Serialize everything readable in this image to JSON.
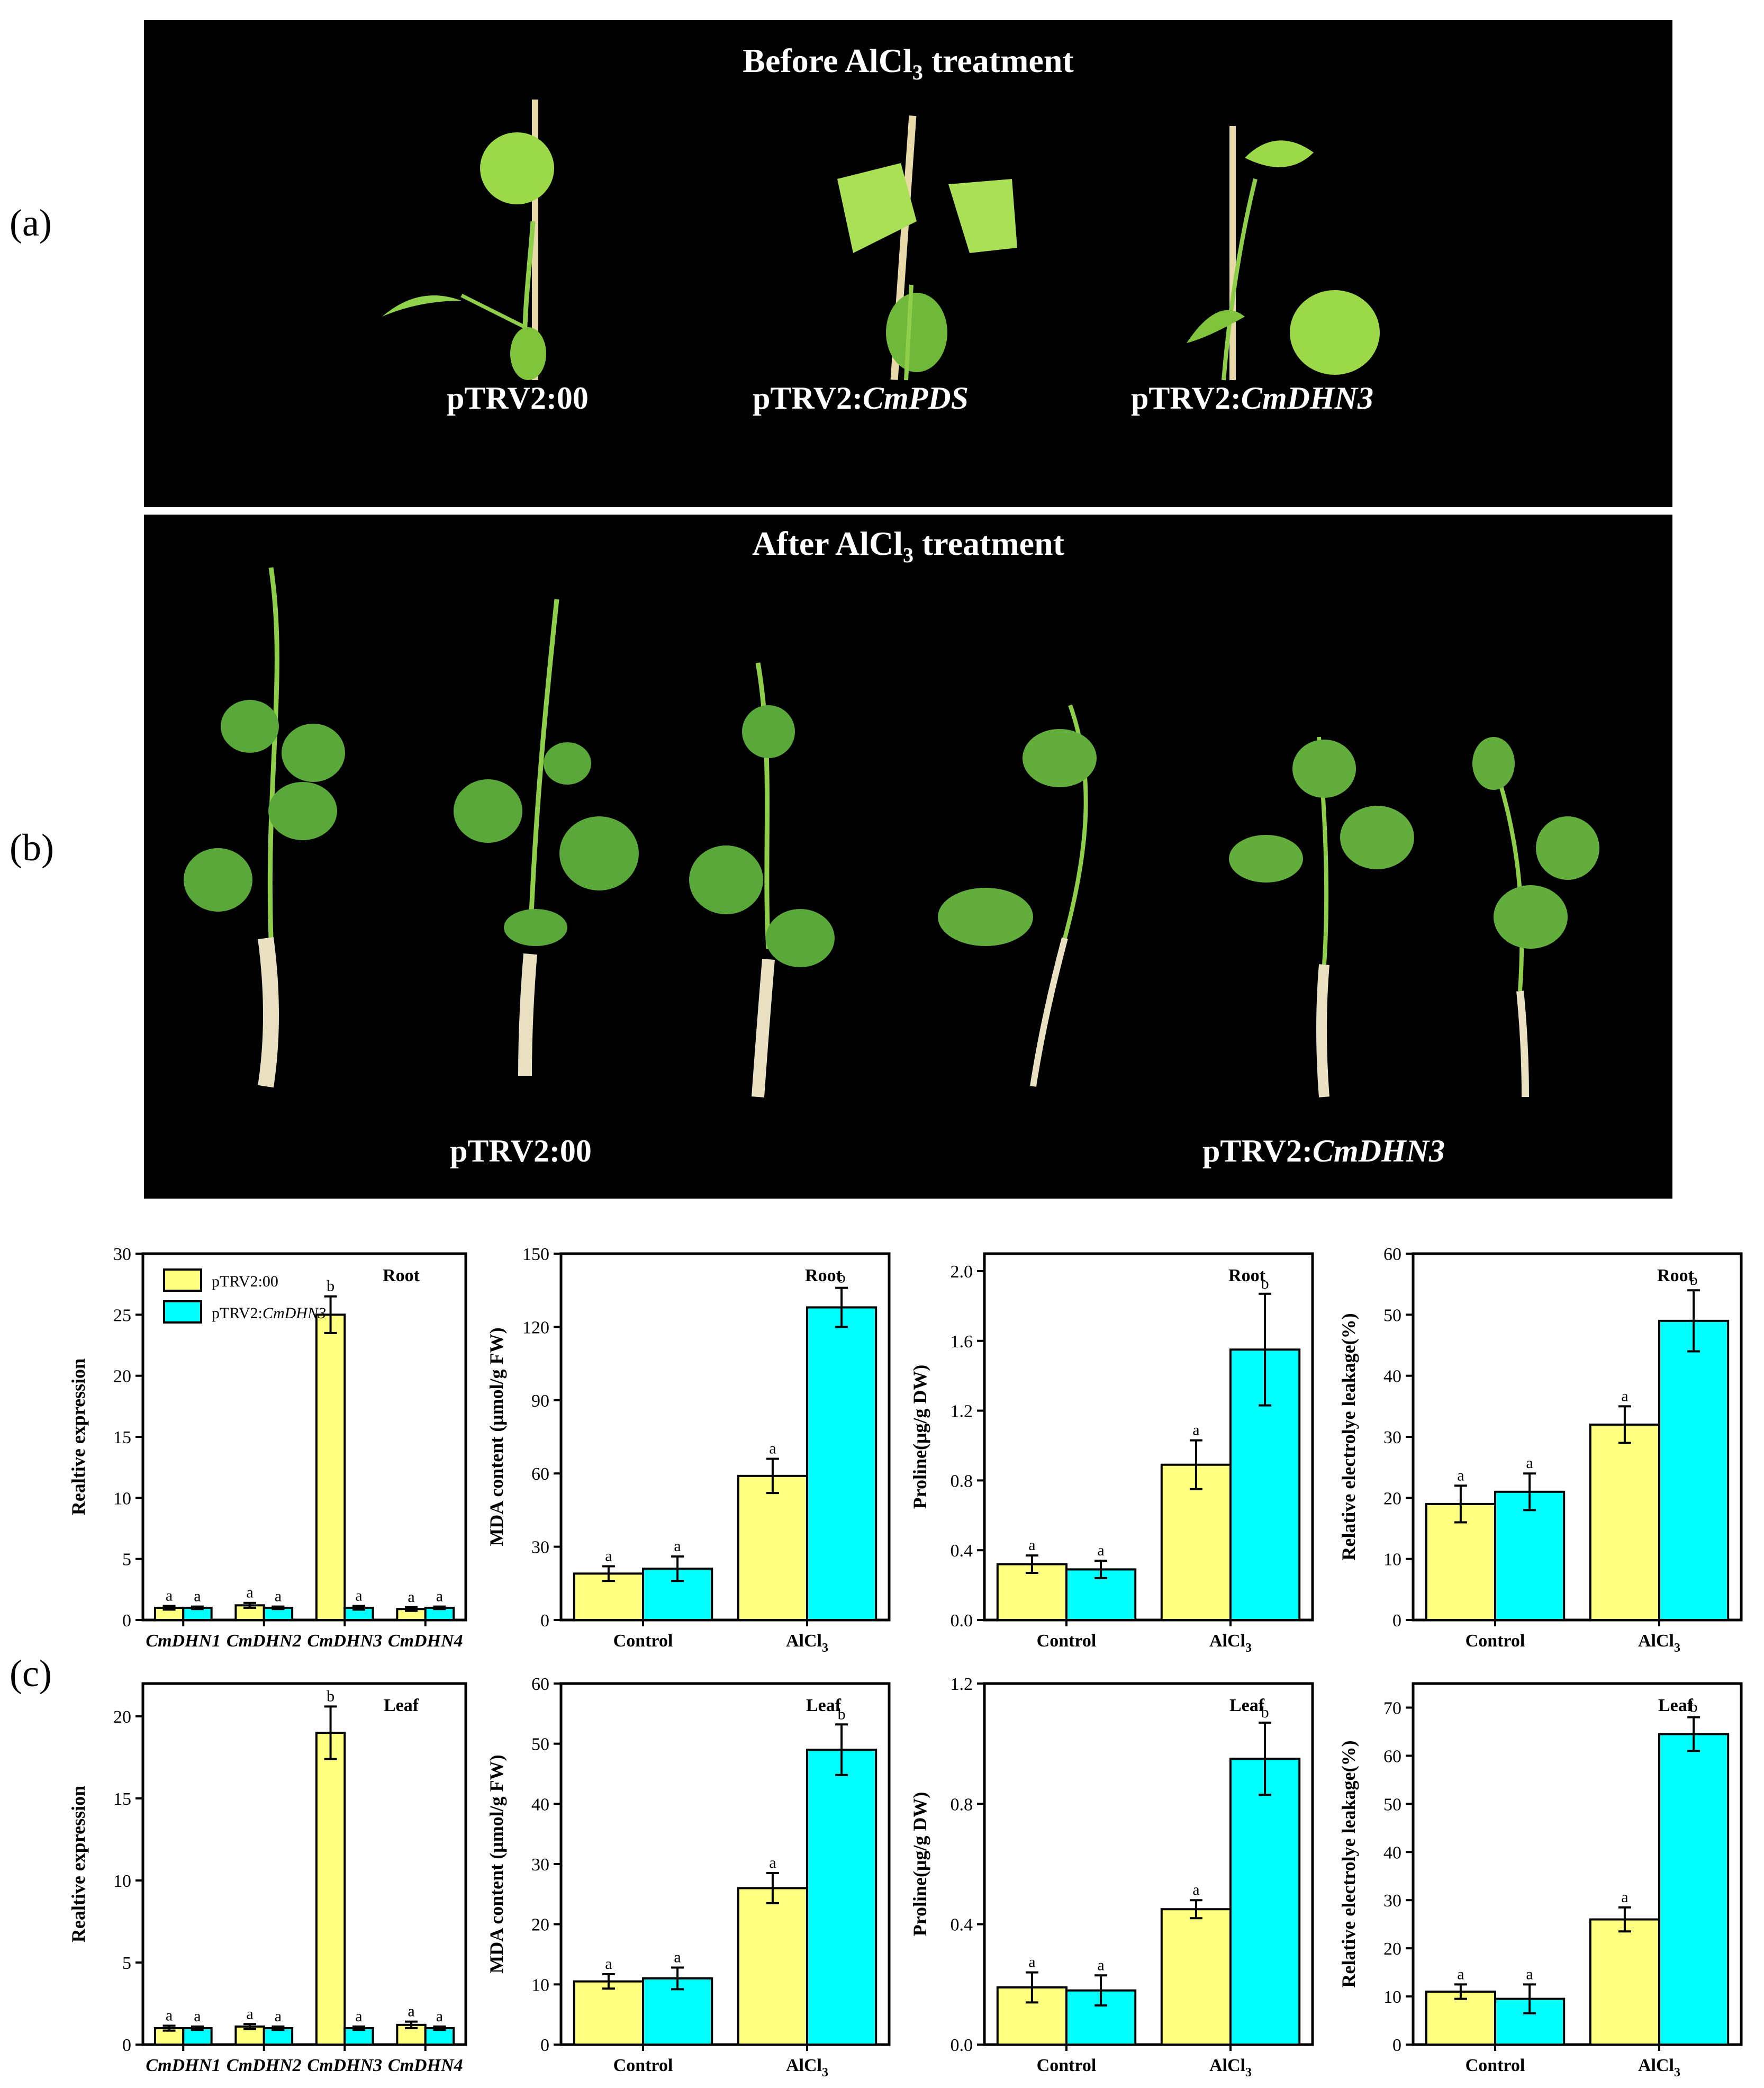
{
  "panels": {
    "a": "(a)",
    "b": "(b)",
    "c": "(c)"
  },
  "photo_a": {
    "title": "Before AlCl",
    "title_sub": "3",
    "title_rest": " treatment",
    "labels": [
      {
        "prefix": "pTRV2:00",
        "gene": ""
      },
      {
        "prefix": "pTRV2:",
        "gene": "CmPDS"
      },
      {
        "prefix": "pTRV2:",
        "gene": "CmDHN3"
      }
    ]
  },
  "photo_b": {
    "title": "After AlCl",
    "title_sub": "3",
    "title_rest": " treatment",
    "labels": [
      {
        "prefix": "pTRV2:00",
        "gene": ""
      },
      {
        "prefix": "pTRV2:",
        "gene": "CmDHN3"
      }
    ]
  },
  "colors": {
    "pTRV2_00": "#ffff80",
    "pTRV2_CmDHN3": "#00ffff",
    "photo_bg": "#000000",
    "leaf": "#7ec850"
  },
  "legend": [
    {
      "prefix": "pTRV2:00",
      "gene": ""
    },
    {
      "prefix": "pTRV2:",
      "gene": "CmDHN3"
    }
  ],
  "chart_data": [
    {
      "type": "bar",
      "title": "Root",
      "ylabel": "Realtive expression",
      "categories": [
        "CmDHN1",
        "CmDHN2",
        "CmDHN3",
        "CmDHN4"
      ],
      "categories_italic": true,
      "ylim": [
        0,
        30
      ],
      "yticks": [
        0,
        5,
        10,
        15,
        20,
        25,
        30
      ],
      "series": [
        {
          "name": "pTRV2:00",
          "values": [
            1.0,
            1.2,
            25.0,
            0.9
          ],
          "errors": [
            0.15,
            0.2,
            1.5,
            0.15
          ],
          "letters": [
            "a",
            "a",
            "b",
            "a"
          ]
        },
        {
          "name": "pTRV2:CmDHN3",
          "values": [
            1.0,
            1.0,
            1.0,
            1.0
          ],
          "errors": [
            0.1,
            0.1,
            0.15,
            0.1
          ],
          "letters": [
            "a",
            "a",
            "a",
            "a"
          ]
        }
      ]
    },
    {
      "type": "bar",
      "title": "Root",
      "ylabel": "MDA content (μmol/g FW)",
      "categories": [
        "Control",
        "AlCl3"
      ],
      "ylim": [
        0,
        150
      ],
      "yticks": [
        0,
        30,
        60,
        90,
        120,
        150
      ],
      "series": [
        {
          "name": "pTRV2:00",
          "values": [
            19,
            59
          ],
          "errors": [
            3,
            7
          ],
          "letters": [
            "a",
            "a"
          ]
        },
        {
          "name": "pTRV2:CmDHN3",
          "values": [
            21,
            128
          ],
          "errors": [
            5,
            8
          ],
          "letters": [
            "a",
            "b"
          ]
        }
      ]
    },
    {
      "type": "bar",
      "title": "Root",
      "ylabel": "Proline(μg/g DW)",
      "categories": [
        "Control",
        "AlCl3"
      ],
      "ylim": [
        0,
        2.1
      ],
      "yticks": [
        "0.0",
        "0.4",
        "0.8",
        "1.2",
        "1.6",
        "2.0"
      ],
      "series": [
        {
          "name": "pTRV2:00",
          "values": [
            0.32,
            0.89
          ],
          "errors": [
            0.05,
            0.14
          ],
          "letters": [
            "a",
            "a"
          ]
        },
        {
          "name": "pTRV2:CmDHN3",
          "values": [
            0.29,
            1.55
          ],
          "errors": [
            0.05,
            0.32
          ],
          "letters": [
            "a",
            "b"
          ]
        }
      ]
    },
    {
      "type": "bar",
      "title": "Root",
      "ylabel": "Relative electrolye leakage(%)",
      "categories": [
        "Control",
        "AlCl3"
      ],
      "ylim": [
        0,
        60
      ],
      "yticks": [
        0,
        10,
        20,
        30,
        40,
        50,
        60
      ],
      "series": [
        {
          "name": "pTRV2:00",
          "values": [
            19,
            32
          ],
          "errors": [
            3,
            3
          ],
          "letters": [
            "a",
            "a"
          ]
        },
        {
          "name": "pTRV2:CmDHN3",
          "values": [
            21,
            49
          ],
          "errors": [
            3,
            5
          ],
          "letters": [
            "a",
            "b"
          ]
        }
      ]
    },
    {
      "type": "bar",
      "title": "Leaf",
      "ylabel": "Realtive expression",
      "categories": [
        "CmDHN1",
        "CmDHN2",
        "CmDHN3",
        "CmDHN4"
      ],
      "categories_italic": true,
      "ylim": [
        0,
        22
      ],
      "yticks": [
        0,
        5,
        10,
        15,
        20
      ],
      "series": [
        {
          "name": "pTRV2:00",
          "values": [
            1.0,
            1.1,
            19.0,
            1.2
          ],
          "errors": [
            0.15,
            0.15,
            1.6,
            0.2
          ],
          "letters": [
            "a",
            "a",
            "b",
            "a"
          ]
        },
        {
          "name": "pTRV2:CmDHN3",
          "values": [
            1.0,
            1.0,
            1.0,
            1.0
          ],
          "errors": [
            0.1,
            0.1,
            0.1,
            0.1
          ],
          "letters": [
            "a",
            "a",
            "a",
            "a"
          ]
        }
      ]
    },
    {
      "type": "bar",
      "title": "Leaf",
      "ylabel": "MDA content (μmol/g FW)",
      "categories": [
        "Control",
        "AlCl3"
      ],
      "ylim": [
        0,
        60
      ],
      "yticks": [
        0,
        10,
        20,
        30,
        40,
        50,
        60
      ],
      "series": [
        {
          "name": "pTRV2:00",
          "values": [
            10.5,
            26
          ],
          "errors": [
            1.2,
            2.5
          ],
          "letters": [
            "a",
            "a"
          ]
        },
        {
          "name": "pTRV2:CmDHN3",
          "values": [
            11,
            49
          ],
          "errors": [
            1.8,
            4.2
          ],
          "letters": [
            "a",
            "b"
          ]
        }
      ]
    },
    {
      "type": "bar",
      "title": "Leaf",
      "ylabel": "Proline(μg/g DW)",
      "categories": [
        "Control",
        "AlCl3"
      ],
      "ylim": [
        0,
        1.2
      ],
      "yticks": [
        "0.0",
        "0.4",
        "0.8",
        "1.2"
      ],
      "series": [
        {
          "name": "pTRV2:00",
          "values": [
            0.19,
            0.45
          ],
          "errors": [
            0.05,
            0.03
          ],
          "letters": [
            "a",
            "a"
          ]
        },
        {
          "name": "pTRV2:CmDHN3",
          "values": [
            0.18,
            0.95
          ],
          "errors": [
            0.05,
            0.12
          ],
          "letters": [
            "a",
            "b"
          ]
        }
      ]
    },
    {
      "type": "bar",
      "title": "Leaf",
      "ylabel": "Relative electrolye leakage(%)",
      "categories": [
        "Control",
        "AlCl3"
      ],
      "ylim": [
        0,
        75
      ],
      "yticks": [
        0,
        10,
        20,
        30,
        40,
        50,
        60,
        70
      ],
      "series": [
        {
          "name": "pTRV2:00",
          "values": [
            11,
            26
          ],
          "errors": [
            1.5,
            2.5
          ],
          "letters": [
            "a",
            "a"
          ]
        },
        {
          "name": "pTRV2:CmDHN3",
          "values": [
            9.5,
            64.5
          ],
          "errors": [
            3,
            3.5
          ],
          "letters": [
            "a",
            "b"
          ]
        }
      ]
    }
  ]
}
